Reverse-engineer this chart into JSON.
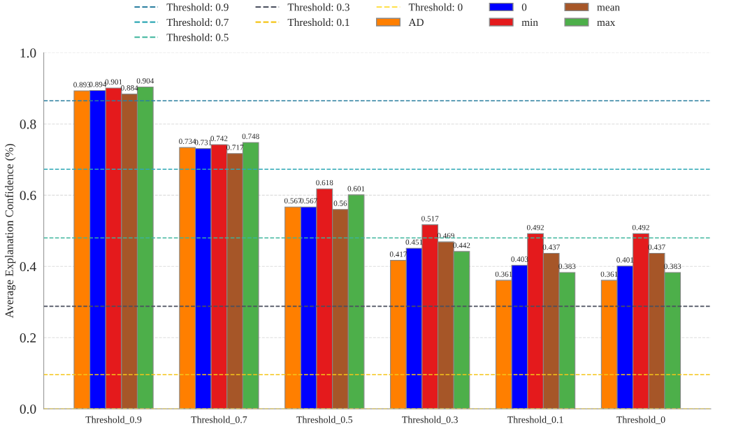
{
  "chart_data": {
    "type": "bar",
    "ylabel": "Average Explanation Confidence (%)",
    "categories": [
      "Threshold_0.9",
      "Threshold_0.7",
      "Threshold_0.5",
      "Threshold_0.3",
      "Threshold_0.1",
      "Threshold_0"
    ],
    "series": [
      {
        "name": "AD",
        "color": "#ff7f00",
        "values": [
          0.893,
          0.734,
          0.567,
          0.417,
          0.361,
          0.361
        ]
      },
      {
        "name": "0",
        "color": "#0000ff",
        "values": [
          0.894,
          0.731,
          0.567,
          0.451,
          0.403,
          0.401
        ]
      },
      {
        "name": "min",
        "color": "#e41a1c",
        "values": [
          0.901,
          0.742,
          0.618,
          0.517,
          0.492,
          0.492
        ]
      },
      {
        "name": "mean",
        "color": "#a65628",
        "values": [
          0.884,
          0.717,
          0.56,
          0.469,
          0.437,
          0.437
        ]
      },
      {
        "name": "max",
        "color": "#4daf4a",
        "values": [
          0.904,
          0.748,
          0.601,
          0.442,
          0.383,
          0.383
        ]
      }
    ],
    "data_labels": true,
    "ylim": [
      0,
      1
    ],
    "yticks": [
      {
        "value": 0,
        "label": "0.0"
      },
      0.2,
      0.4,
      0.6,
      0.8,
      {
        "value": 1,
        "label": "1.0"
      }
    ],
    "ref_lines": [
      {
        "axis": "y",
        "value": 0.865,
        "label": "Threshold: 0.9",
        "color": "#2b7fa0",
        "line_style": "dashed"
      },
      {
        "axis": "y",
        "value": 0.673,
        "label": "Threshold: 0.7",
        "color": "#2fa8b5",
        "line_style": "dashed"
      },
      {
        "axis": "y",
        "value": 0.48,
        "label": "Threshold: 0.5",
        "color": "#3cb59c",
        "line_style": "dashed"
      },
      {
        "axis": "y",
        "value": 0.288,
        "label": "Threshold: 0.3",
        "color": "#4a4f5e",
        "line_style": "dashed"
      },
      {
        "axis": "y",
        "value": 0.096,
        "label": "Threshold: 0.1",
        "color": "#f5c518",
        "line_style": "dashed"
      },
      {
        "axis": "y",
        "value": 0,
        "label": "Threshold: 0",
        "color": "#ffe04a",
        "line_style": "dashed"
      }
    ],
    "grid": "y",
    "legend": "top"
  }
}
